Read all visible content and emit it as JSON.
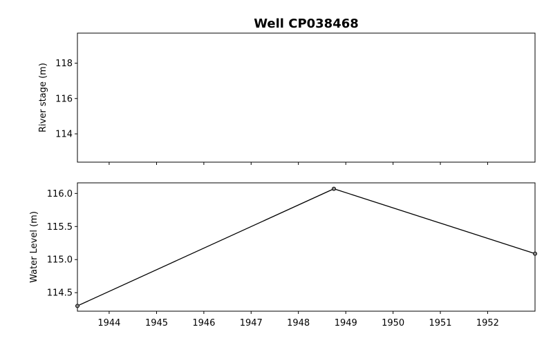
{
  "figure": {
    "title": "Well CP038468"
  },
  "chart_data": [
    {
      "type": "line",
      "title": "Well CP038468",
      "xlabel": "",
      "ylabel": "River stage (m)",
      "ylim": [
        112.4,
        119.7
      ],
      "yticks": [
        114,
        116,
        118
      ],
      "x_axis": "date",
      "xlim": [
        "1943-05-01",
        "1953-01-01"
      ],
      "xticks": [
        "1944",
        "1945",
        "1946",
        "1947",
        "1948",
        "1949",
        "1950",
        "1951",
        "1952"
      ],
      "xticklabels_visible": false,
      "series": [
        {
          "color": "#000000",
          "x": [],
          "y": []
        }
      ]
    },
    {
      "type": "line",
      "xlabel": "",
      "ylabel": "Water Level (m)",
      "ylim": [
        114.22,
        116.16
      ],
      "yticks": [
        114.5,
        115.0,
        115.5,
        116.0
      ],
      "yticklabels": [
        "114.5",
        "115.0",
        "115.5",
        "116.0"
      ],
      "x_axis": "date",
      "xlim": [
        "1943-05-01",
        "1953-01-01"
      ],
      "xticks": [
        "1944",
        "1945",
        "1946",
        "1947",
        "1948",
        "1949",
        "1950",
        "1951",
        "1952"
      ],
      "xticklabels_visible": true,
      "series": [
        {
          "color": "#000000",
          "marker": "circle",
          "x": [
            "1943-05-01",
            "1948-10-01",
            "1953-01-01"
          ],
          "y": [
            114.3,
            116.07,
            115.09
          ]
        }
      ]
    }
  ]
}
